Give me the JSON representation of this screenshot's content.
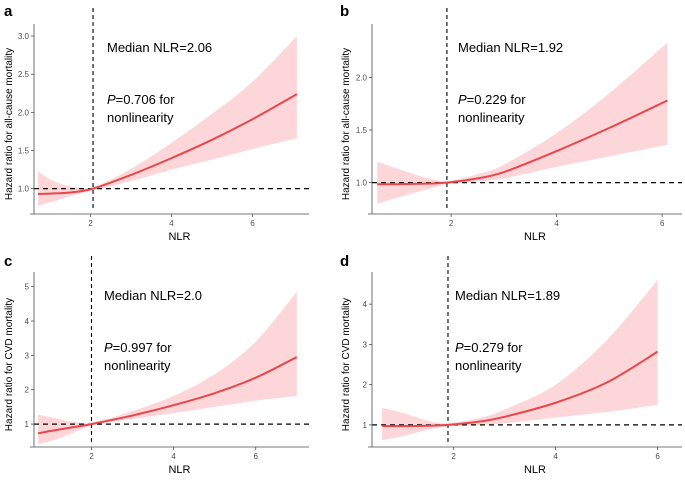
{
  "chart_data": [
    {
      "type": "line",
      "panel_label": "a",
      "xlabel": "NLR",
      "ylabel": "Hazard ratio for all-cause mortality",
      "xlim": [
        0.6,
        7.3
      ],
      "ylim": [
        0.72,
        3.08
      ],
      "xticks": [
        "2",
        "4",
        "6"
      ],
      "yticks": [
        "1.0",
        "1.5",
        "2.0",
        "2.5",
        "3.0"
      ],
      "reference_hr": 1.0,
      "median_x": 2.06,
      "annotation_median": "Median NLR=2.06",
      "annotation_p_label": "P",
      "annotation_p_value": "=0.706 for",
      "annotation_p_line2": "nonlinearity",
      "series": [
        {
          "name": "HR",
          "x": [
            0.7,
            1.0,
            1.5,
            2.06,
            3.0,
            4.0,
            5.0,
            6.0,
            7.1
          ],
          "values": [
            0.93,
            0.935,
            0.95,
            1.0,
            1.18,
            1.4,
            1.64,
            1.91,
            2.24
          ]
        },
        {
          "name": "95% CI lower",
          "x": [
            0.7,
            1.0,
            1.5,
            2.06,
            3.0,
            4.0,
            5.0,
            6.0,
            7.1
          ],
          "values": [
            0.78,
            0.82,
            0.9,
            0.98,
            1.1,
            1.25,
            1.38,
            1.52,
            1.66
          ]
        },
        {
          "name": "95% CI upper",
          "x": [
            0.7,
            1.0,
            1.5,
            2.06,
            3.0,
            4.0,
            5.0,
            6.0,
            7.1
          ],
          "values": [
            1.23,
            1.12,
            1.03,
            1.02,
            1.26,
            1.6,
            1.98,
            2.4,
            3.0
          ]
        }
      ]
    },
    {
      "type": "line",
      "panel_label": "b",
      "xlabel": "NLR",
      "ylabel": "Hazard ratio for all-cause mortality",
      "xlim": [
        0.5,
        6.3
      ],
      "ylim": [
        0.74,
        2.45
      ],
      "xticks": [
        "2",
        "4",
        "6"
      ],
      "yticks": [
        "1.0",
        "1.5",
        "2.0"
      ],
      "reference_hr": 1.0,
      "median_x": 1.92,
      "annotation_median": "Median NLR=1.92",
      "annotation_p_label": "P",
      "annotation_p_value": "=0.229 for",
      "annotation_p_line2": "nonlinearity",
      "series": [
        {
          "name": "HR",
          "x": [
            0.6,
            1.0,
            1.5,
            1.92,
            2.5,
            3.0,
            4.0,
            5.0,
            6.1
          ],
          "values": [
            0.985,
            0.985,
            0.99,
            1.0,
            1.04,
            1.1,
            1.3,
            1.52,
            1.78
          ]
        },
        {
          "name": "95% CI lower",
          "x": [
            0.6,
            1.0,
            1.5,
            1.92,
            2.5,
            3.0,
            4.0,
            5.0,
            6.1
          ],
          "values": [
            0.8,
            0.86,
            0.93,
            0.985,
            1.01,
            1.04,
            1.15,
            1.25,
            1.36
          ]
        },
        {
          "name": "95% CI upper",
          "x": [
            0.6,
            1.0,
            1.5,
            1.92,
            2.5,
            3.0,
            4.0,
            5.0,
            6.1
          ],
          "values": [
            1.2,
            1.13,
            1.05,
            1.015,
            1.08,
            1.17,
            1.47,
            1.85,
            2.33
          ]
        }
      ]
    },
    {
      "type": "line",
      "panel_label": "c",
      "xlabel": "NLR",
      "ylabel": "Hazard ratio for CVD mortality",
      "xlim": [
        0.6,
        7.2
      ],
      "ylim": [
        0.45,
        5.25
      ],
      "xticks": [
        "2",
        "4",
        "6"
      ],
      "yticks": [
        "1",
        "2",
        "3",
        "4",
        "5"
      ],
      "reference_hr": 1.0,
      "median_x": 2.0,
      "annotation_median": "Median NLR=2.0",
      "annotation_p_label": "P",
      "annotation_p_value": "=0.997 for",
      "annotation_p_line2": "nonlinearity",
      "series": [
        {
          "name": "HR",
          "x": [
            0.7,
            1.0,
            1.5,
            2.0,
            3.0,
            4.0,
            5.0,
            6.0,
            7.0
          ],
          "values": [
            0.73,
            0.8,
            0.9,
            1.0,
            1.25,
            1.55,
            1.9,
            2.35,
            2.95
          ]
        },
        {
          "name": "95% CI lower",
          "x": [
            0.7,
            1.0,
            1.5,
            2.0,
            3.0,
            4.0,
            5.0,
            6.0,
            7.0
          ],
          "values": [
            0.42,
            0.5,
            0.72,
            0.96,
            1.15,
            1.32,
            1.5,
            1.68,
            1.82
          ]
        },
        {
          "name": "95% CI upper",
          "x": [
            0.7,
            1.0,
            1.5,
            2.0,
            3.0,
            4.0,
            5.0,
            6.0,
            7.0
          ],
          "values": [
            1.28,
            1.2,
            1.08,
            1.04,
            1.38,
            1.82,
            2.45,
            3.4,
            4.85
          ]
        }
      ]
    },
    {
      "type": "line",
      "panel_label": "d",
      "xlabel": "NLR",
      "ylabel": "Hazard ratio for CVD mortality",
      "xlim": [
        0.4,
        6.4
      ],
      "ylim": [
        0.55,
        4.65
      ],
      "xticks": [
        "2",
        "4",
        "6"
      ],
      "yticks": [
        "1",
        "2",
        "3",
        "4"
      ],
      "reference_hr": 1.0,
      "median_x": 1.89,
      "annotation_median": "Median NLR=1.89",
      "annotation_p_label": "P",
      "annotation_p_value": "=0.279 for",
      "annotation_p_line2": "nonlinearity",
      "series": [
        {
          "name": "HR",
          "x": [
            0.6,
            1.0,
            1.5,
            1.89,
            2.5,
            3.0,
            4.0,
            5.0,
            6.0
          ],
          "values": [
            0.97,
            0.97,
            0.98,
            1.0,
            1.08,
            1.2,
            1.55,
            2.05,
            2.82
          ]
        },
        {
          "name": "95% CI lower",
          "x": [
            0.6,
            1.0,
            1.5,
            1.89,
            2.5,
            3.0,
            4.0,
            5.0,
            6.0
          ],
          "values": [
            0.62,
            0.72,
            0.88,
            0.96,
            1.0,
            1.04,
            1.18,
            1.32,
            1.5
          ]
        },
        {
          "name": "95% CI upper",
          "x": [
            0.6,
            1.0,
            1.5,
            1.89,
            2.5,
            3.0,
            4.0,
            5.0,
            6.0
          ],
          "values": [
            1.42,
            1.3,
            1.1,
            1.04,
            1.17,
            1.38,
            2.0,
            3.1,
            4.6
          ]
        }
      ]
    }
  ],
  "colors": {
    "line": "#e8474c",
    "band": "#fcd6d9",
    "axis": "#4d4d4d",
    "reference": "#000000"
  }
}
